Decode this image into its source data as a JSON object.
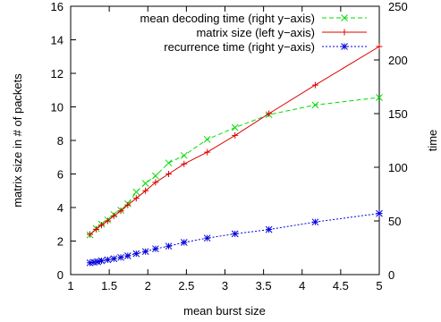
{
  "chart_data": {
    "type": "line",
    "title": "",
    "xlabel": "mean burst size",
    "ylabel_left": "matrix size in # of packets",
    "ylabel_right": "time",
    "xlim": [
      1,
      5
    ],
    "ylim_left": [
      0,
      16
    ],
    "ylim_right": [
      0,
      250
    ],
    "grid": false,
    "legend_position": "top-right",
    "x_ticks": [
      "1",
      "1.5",
      "2",
      "2.5",
      "3",
      "3.5",
      "4",
      "4.5",
      "5"
    ],
    "y_left_ticks": [
      "0",
      "2",
      "4",
      "6",
      "8",
      "10",
      "12",
      "14",
      "16"
    ],
    "y_right_ticks": [
      "0",
      "50",
      "100",
      "150",
      "200",
      "250"
    ],
    "series": [
      {
        "name": "mean decoding time (right y−axis)",
        "axis": "right",
        "color": "#00dd00",
        "marker": "x",
        "dash": "dashed",
        "x": [
          1.25,
          1.33,
          1.4,
          1.48,
          1.56,
          1.65,
          1.74,
          1.85,
          1.97,
          2.1,
          2.27,
          2.47,
          2.77,
          3.13,
          3.57,
          4.17,
          5.0
        ],
        "y": [
          37,
          43,
          47,
          51,
          56,
          60,
          66,
          77,
          85,
          92,
          104,
          111,
          126,
          137,
          149,
          158,
          165
        ]
      },
      {
        "name": "matrix size (left y−axis)",
        "axis": "left",
        "color": "#dd0000",
        "marker": "+",
        "dash": "solid",
        "x": [
          1.25,
          1.33,
          1.4,
          1.48,
          1.56,
          1.65,
          1.74,
          1.85,
          1.97,
          2.1,
          2.27,
          2.47,
          2.77,
          3.13,
          3.57,
          4.17,
          5.0
        ],
        "y": [
          2.4,
          2.7,
          2.95,
          3.2,
          3.5,
          3.8,
          4.15,
          4.55,
          5.0,
          5.5,
          6.0,
          6.6,
          7.3,
          8.3,
          9.6,
          11.3,
          13.6
        ]
      },
      {
        "name": "recurrence time (right y−axis)",
        "axis": "right",
        "color": "#0000dd",
        "marker": "*",
        "dash": "dotted",
        "x": [
          1.25,
          1.3,
          1.35,
          1.4,
          1.48,
          1.56,
          1.65,
          1.74,
          1.85,
          1.97,
          2.1,
          2.27,
          2.47,
          2.77,
          3.13,
          3.57,
          4.17,
          5.0
        ],
        "y": [
          11,
          11.5,
          12,
          12.8,
          13.8,
          14.8,
          16,
          17.5,
          19.5,
          21.5,
          24,
          26.5,
          30,
          34,
          38,
          42,
          49,
          57
        ]
      }
    ]
  }
}
